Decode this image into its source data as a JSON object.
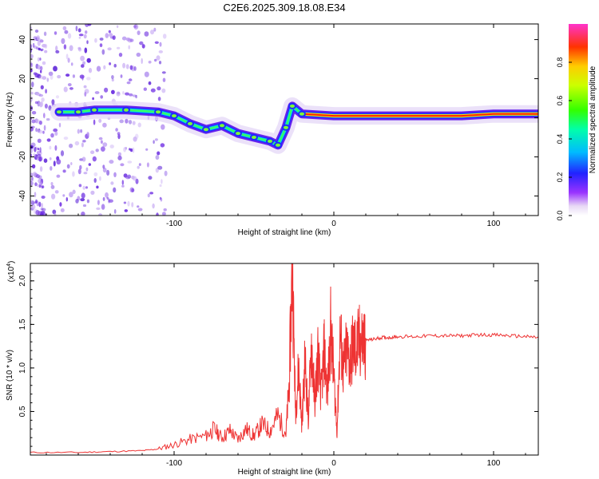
{
  "title": "C2E6.2025.309.18.08.E34",
  "chart_data": [
    {
      "type": "heatmap",
      "name": "spectrogram",
      "xlabel": "Height of straight line (km)",
      "ylabel": "Frequency (Hz)",
      "xlim": [
        -190,
        128
      ],
      "ylim": [
        -50,
        48
      ],
      "xticks": [
        -100,
        0,
        100
      ],
      "yticks": [
        -40,
        -20,
        0,
        20,
        40
      ],
      "colorbar": {
        "label": "Normalized spectral amplitude",
        "range": [
          0,
          1
        ],
        "ticks": [
          0.0,
          0.2,
          0.4,
          0.6,
          0.8
        ],
        "tick_labels": [
          "0.0",
          "0.2",
          "0.4",
          "0.6",
          "0.8"
        ]
      },
      "ridge": [
        {
          "x": -172,
          "f": 3
        },
        {
          "x": -160,
          "f": 3
        },
        {
          "x": -150,
          "f": 4
        },
        {
          "x": -130,
          "f": 4
        },
        {
          "x": -110,
          "f": 3
        },
        {
          "x": -100,
          "f": 1
        },
        {
          "x": -90,
          "f": -3
        },
        {
          "x": -80,
          "f": -6
        },
        {
          "x": -70,
          "f": -4
        },
        {
          "x": -60,
          "f": -8
        },
        {
          "x": -50,
          "f": -10
        },
        {
          "x": -40,
          "f": -12
        },
        {
          "x": -35,
          "f": -14
        },
        {
          "x": -30,
          "f": -5
        },
        {
          "x": -26,
          "f": 6
        },
        {
          "x": -20,
          "f": 2
        },
        {
          "x": 0,
          "f": 1
        },
        {
          "x": 40,
          "f": 1
        },
        {
          "x": 80,
          "f": 1
        },
        {
          "x": 100,
          "f": 2
        },
        {
          "x": 128,
          "f": 2
        }
      ]
    },
    {
      "type": "line",
      "name": "snr",
      "color": "#ee3333",
      "xlabel": "Height of straight line (km)",
      "ylabel": "SNR (10 * v/v)",
      "scale_label": "(x10",
      "scale_exp": "4",
      "scale_close": ")",
      "xlim": [
        -190,
        128
      ],
      "ylim": [
        0,
        2.2
      ],
      "xticks": [
        -100,
        0,
        100
      ],
      "yticks": [
        0.5,
        1.0,
        1.5,
        2.0
      ],
      "ytick_labels": [
        "0.5",
        "1.0",
        "1.5",
        "2.0"
      ],
      "x": [
        -190,
        -160,
        -140,
        -120,
        -110,
        -100,
        -90,
        -80,
        -75,
        -70,
        -65,
        -60,
        -55,
        -50,
        -45,
        -40,
        -35,
        -30,
        -28,
        -26,
        -24,
        -22,
        -20,
        -18,
        -16,
        -14,
        -12,
        -10,
        -8,
        -6,
        -4,
        -2,
        0,
        2,
        4,
        6,
        8,
        10,
        12,
        14,
        16,
        18,
        20,
        25,
        30,
        35,
        40,
        50,
        60,
        70,
        80,
        90,
        100,
        110,
        120,
        128
      ],
      "y": [
        0.03,
        0.03,
        0.04,
        0.05,
        0.07,
        0.12,
        0.18,
        0.22,
        0.3,
        0.2,
        0.28,
        0.18,
        0.3,
        0.22,
        0.35,
        0.28,
        0.45,
        0.25,
        0.8,
        2.18,
        0.5,
        1.0,
        0.35,
        1.1,
        0.4,
        1.3,
        0.6,
        1.15,
        0.7,
        1.2,
        0.7,
        1.45,
        0.9,
        0.28,
        1.4,
        0.95,
        1.2,
        1.05,
        1.25,
        1.2,
        1.3,
        1.3,
        1.32,
        1.33,
        1.35,
        1.35,
        1.36,
        1.36,
        1.37,
        1.37,
        1.37,
        1.38,
        1.38,
        1.37,
        1.36,
        1.35
      ]
    }
  ]
}
